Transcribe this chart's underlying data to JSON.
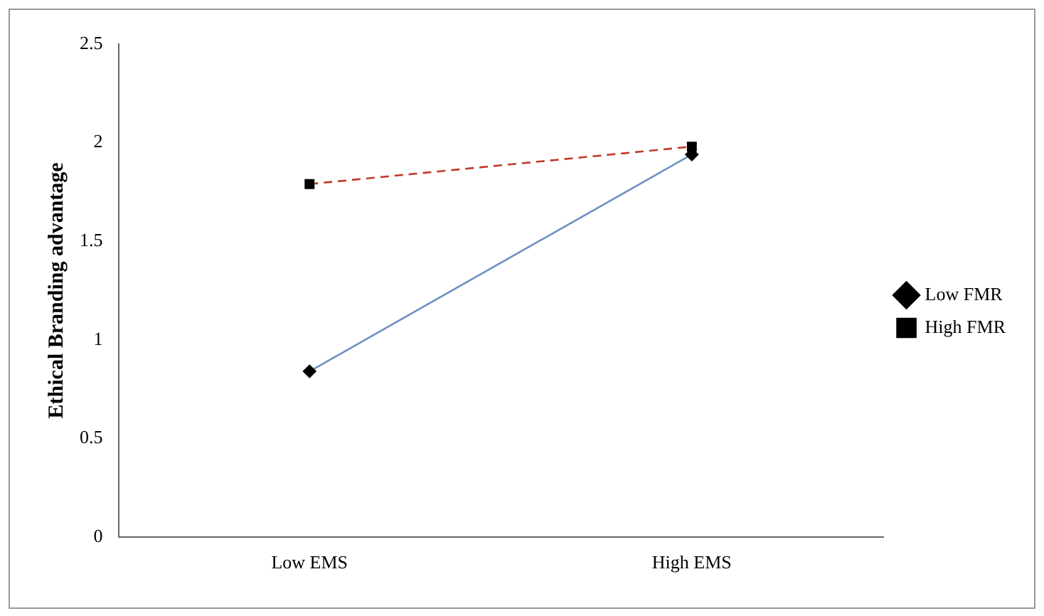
{
  "chart_data": {
    "type": "line",
    "ylabel": "Ethical Branding advantage",
    "categories": [
      "Low EMS",
      "High EMS"
    ],
    "series": [
      {
        "name": "Low FMR",
        "color": "#6f8fc4",
        "values": [
          0.84,
          1.94
        ],
        "marker": "diamond",
        "line_style": "solid"
      },
      {
        "name": "High FMR",
        "color": "#c0392b",
        "values": [
          1.79,
          1.98
        ],
        "marker": "square",
        "line_style": "dashed"
      }
    ],
    "ylim": [
      0,
      2.5
    ],
    "yticks": [
      0,
      0.5,
      1,
      1.5,
      2,
      2.5
    ],
    "grid": false,
    "legend": "right"
  }
}
